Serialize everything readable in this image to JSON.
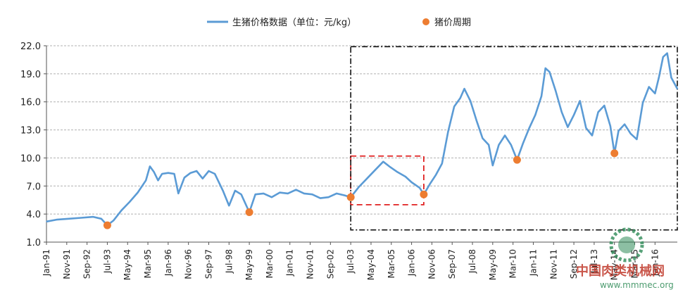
{
  "chart_data": {
    "type": "line",
    "title": "",
    "xlabel": "",
    "ylabel": "",
    "ylim": [
      1.0,
      22.0
    ],
    "yticks": [
      "1.0",
      "4.0",
      "7.0",
      "10.0",
      "13.0",
      "16.0",
      "19.0",
      "22.0"
    ],
    "ytick_values": [
      1,
      4,
      7,
      10,
      13,
      16,
      19,
      22
    ],
    "grid": "horizontal",
    "legend_position": "top",
    "xlim": [
      "1991-01",
      "2016-12"
    ],
    "x_tick_labels": [
      "Jan-91",
      "Nov-91",
      "Sep-92",
      "Jul-93",
      "May-94",
      "Mar-95",
      "Jan-96",
      "Nov-96",
      "Sep-97",
      "Jul-98",
      "May-99",
      "Mar-00",
      "Jan-01",
      "Nov-01",
      "Sep-02",
      "Jul-03",
      "May-04",
      "Mar-05",
      "Jan-06",
      "Nov-06",
      "Sep-07",
      "Jul-08",
      "May-09",
      "Mar-10",
      "Jan-11",
      "Nov-11",
      "Sep-12",
      "Jul-13",
      "May-14",
      "Mar-15",
      "Jan-16"
    ],
    "x_tick_dates": [
      "1991-01",
      "1991-11",
      "1992-09",
      "1993-07",
      "1994-05",
      "1995-03",
      "1996-01",
      "1996-11",
      "1997-09",
      "1998-07",
      "1999-05",
      "2000-03",
      "2001-01",
      "2001-11",
      "2002-09",
      "2003-07",
      "2004-05",
      "2005-03",
      "2006-01",
      "2006-11",
      "2007-09",
      "2008-07",
      "2009-05",
      "2010-03",
      "2011-01",
      "2011-11",
      "2012-09",
      "2013-07",
      "2014-05",
      "2015-03",
      "2016-01"
    ],
    "series": [
      {
        "name": "生猪价格数据（单位：元/kg）",
        "color": "#5b9bd5",
        "points": [
          [
            "1991-01",
            3.2
          ],
          [
            "1991-06",
            3.4
          ],
          [
            "1991-12",
            3.5
          ],
          [
            "1992-06",
            3.6
          ],
          [
            "1992-12",
            3.7
          ],
          [
            "1993-04",
            3.5
          ],
          [
            "1993-07",
            2.8
          ],
          [
            "1993-10",
            3.3
          ],
          [
            "1994-02",
            4.4
          ],
          [
            "1994-06",
            5.3
          ],
          [
            "1994-10",
            6.3
          ],
          [
            "1995-02",
            7.6
          ],
          [
            "1995-04",
            9.1
          ],
          [
            "1995-06",
            8.5
          ],
          [
            "1995-08",
            7.6
          ],
          [
            "1995-10",
            8.3
          ],
          [
            "1996-01",
            8.4
          ],
          [
            "1996-04",
            8.3
          ],
          [
            "1996-06",
            6.2
          ],
          [
            "1996-09",
            7.9
          ],
          [
            "1996-12",
            8.4
          ],
          [
            "1997-03",
            8.6
          ],
          [
            "1997-06",
            7.8
          ],
          [
            "1997-09",
            8.6
          ],
          [
            "1997-12",
            8.3
          ],
          [
            "1998-04",
            6.5
          ],
          [
            "1998-07",
            4.9
          ],
          [
            "1998-10",
            6.5
          ],
          [
            "1999-01",
            6.1
          ],
          [
            "1999-05",
            4.2
          ],
          [
            "1999-08",
            6.1
          ],
          [
            "1999-12",
            6.2
          ],
          [
            "2000-04",
            5.8
          ],
          [
            "2000-08",
            6.3
          ],
          [
            "2000-12",
            6.2
          ],
          [
            "2001-04",
            6.6
          ],
          [
            "2001-08",
            6.2
          ],
          [
            "2001-12",
            6.1
          ],
          [
            "2002-04",
            5.7
          ],
          [
            "2002-08",
            5.8
          ],
          [
            "2002-12",
            6.2
          ],
          [
            "2003-04",
            6.0
          ],
          [
            "2003-07",
            5.8
          ],
          [
            "2003-11",
            6.9
          ],
          [
            "2004-03",
            7.8
          ],
          [
            "2004-07",
            8.7
          ],
          [
            "2004-11",
            9.6
          ],
          [
            "2005-02",
            9.1
          ],
          [
            "2005-06",
            8.5
          ],
          [
            "2005-10",
            8.0
          ],
          [
            "2006-01",
            7.4
          ],
          [
            "2006-05",
            6.8
          ],
          [
            "2006-07",
            6.1
          ],
          [
            "2006-10",
            7.2
          ],
          [
            "2007-01",
            8.2
          ],
          [
            "2007-04",
            9.4
          ],
          [
            "2007-07",
            12.8
          ],
          [
            "2007-10",
            15.5
          ],
          [
            "2008-01",
            16.4
          ],
          [
            "2008-03",
            17.4
          ],
          [
            "2008-06",
            16.1
          ],
          [
            "2008-09",
            14.0
          ],
          [
            "2008-12",
            12.1
          ],
          [
            "2009-03",
            11.4
          ],
          [
            "2009-05",
            9.2
          ],
          [
            "2009-08",
            11.4
          ],
          [
            "2009-11",
            12.4
          ],
          [
            "2010-02",
            11.4
          ],
          [
            "2010-05",
            9.8
          ],
          [
            "2010-08",
            11.6
          ],
          [
            "2010-11",
            13.2
          ],
          [
            "2011-02",
            14.6
          ],
          [
            "2011-05",
            16.6
          ],
          [
            "2011-07",
            19.6
          ],
          [
            "2011-09",
            19.2
          ],
          [
            "2011-12",
            17.2
          ],
          [
            "2012-03",
            14.9
          ],
          [
            "2012-06",
            13.3
          ],
          [
            "2012-09",
            14.6
          ],
          [
            "2012-12",
            16.1
          ],
          [
            "2013-03",
            13.2
          ],
          [
            "2013-06",
            12.4
          ],
          [
            "2013-09",
            14.9
          ],
          [
            "2013-12",
            15.6
          ],
          [
            "2014-03",
            13.4
          ],
          [
            "2014-05",
            10.5
          ],
          [
            "2014-07",
            12.9
          ],
          [
            "2014-10",
            13.6
          ],
          [
            "2015-01",
            12.6
          ],
          [
            "2015-04",
            12.0
          ],
          [
            "2015-07",
            15.9
          ],
          [
            "2015-10",
            17.6
          ],
          [
            "2016-01",
            16.9
          ],
          [
            "2016-03",
            18.7
          ],
          [
            "2016-05",
            20.8
          ],
          [
            "2016-07",
            21.2
          ],
          [
            "2016-09",
            18.6
          ],
          [
            "2016-12",
            17.4
          ]
        ]
      },
      {
        "name": "猪价周期",
        "color": "#ed7d31",
        "type": "scatter",
        "points": [
          [
            "1993-07",
            2.8
          ],
          [
            "1999-05",
            4.2
          ],
          [
            "2003-07",
            5.8
          ],
          [
            "2006-07",
            6.1
          ],
          [
            "2010-05",
            9.8
          ],
          [
            "2014-05",
            10.5
          ]
        ]
      }
    ],
    "annotations": [
      {
        "kind": "red-dashed-rectangle",
        "x_range": [
          "2003-07",
          "2006-07"
        ],
        "y_range": [
          5.0,
          10.2
        ]
      },
      {
        "kind": "black-dashdot-rectangle",
        "x_range": [
          "2003-07",
          "2016-12"
        ],
        "y_range": [
          2.3,
          21.9
        ]
      }
    ]
  },
  "watermark": {
    "site_name": "中国肉类机械网",
    "site_url": "www.mmmec.org"
  }
}
